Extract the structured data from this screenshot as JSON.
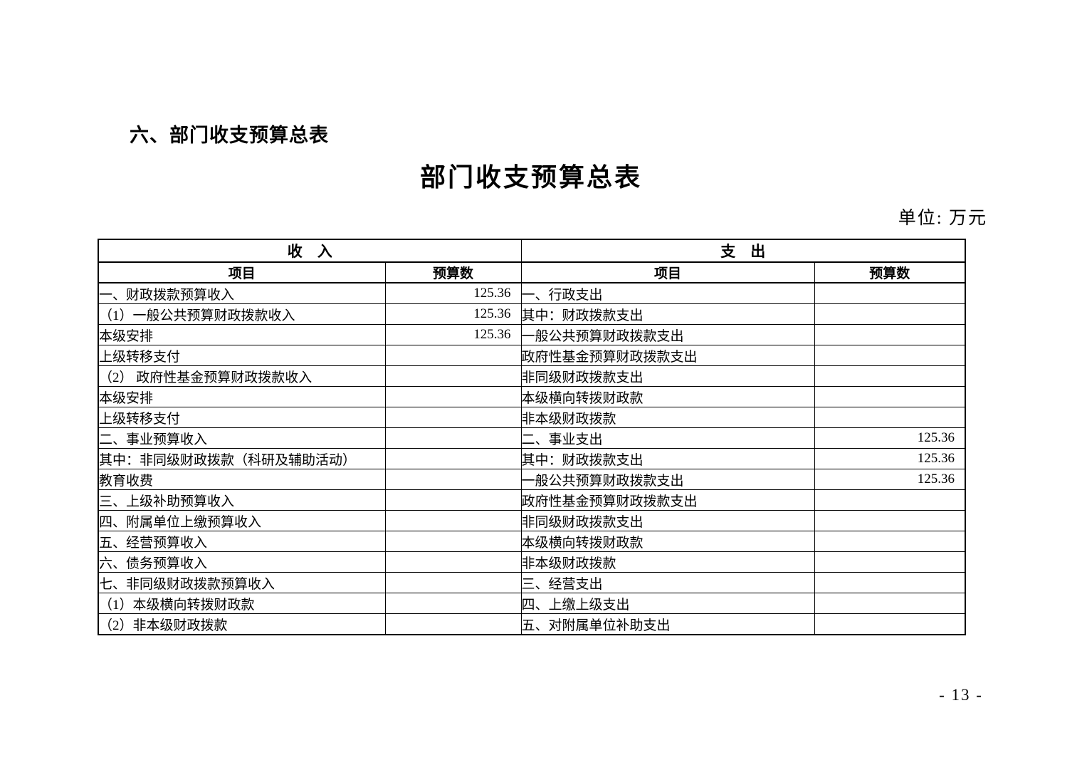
{
  "page": {
    "section_heading": "六、部门收支预算总表",
    "table_title": "部门收支预算总表",
    "unit_label": "单位: 万元",
    "page_number": "- 13 -"
  },
  "table": {
    "income": {
      "header": "收    入",
      "col_item": "项目",
      "col_budget": "预算数",
      "rows": [
        {
          "label": "一、财政拨款预算收入",
          "indent": 0,
          "value": "125.36"
        },
        {
          "label": "（1）一般公共预算财政拨款收入",
          "indent": 1,
          "value": "125.36"
        },
        {
          "label": "本级安排",
          "indent": 4,
          "value": "125.36"
        },
        {
          "label": "上级转移支付",
          "indent": 4,
          "value": ""
        },
        {
          "label": "（2） 政府性基金预算财政拨款收入",
          "indent": 1,
          "value": ""
        },
        {
          "label": "本级安排",
          "indent": 4,
          "value": ""
        },
        {
          "label": "上级转移支付",
          "indent": 4,
          "value": ""
        },
        {
          "label": "二、事业预算收入",
          "indent": 0,
          "value": ""
        },
        {
          "label": "其中：非同级财政拨款（科研及辅助活动）",
          "indent": 1,
          "value": ""
        },
        {
          "label": "教育收费",
          "indent": 2,
          "value": ""
        },
        {
          "label": "三、上级补助预算收入",
          "indent": 0,
          "value": ""
        },
        {
          "label": "四、附属单位上缴预算收入",
          "indent": 0,
          "value": ""
        },
        {
          "label": "五、经营预算收入",
          "indent": 0,
          "value": ""
        },
        {
          "label": "六、债务预算收入",
          "indent": 0,
          "value": ""
        },
        {
          "label": "七、非同级财政拨款预算收入",
          "indent": 0,
          "value": ""
        },
        {
          "label": "（1）本级横向转拨财政款",
          "indent": 1,
          "value": ""
        },
        {
          "label": "（2）非本级财政拨款",
          "indent": 1,
          "value": ""
        }
      ]
    },
    "expense": {
      "header": "支    出",
      "col_item": "项目",
      "col_budget": "预算数",
      "rows": [
        {
          "label": "一、行政支出",
          "indent": 0,
          "value": ""
        },
        {
          "label": "其中：财政拨款支出",
          "indent": 1,
          "value": ""
        },
        {
          "label": "一般公共预算财政拨款支出",
          "indent": 3,
          "value": ""
        },
        {
          "label": "政府性基金预算财政拨款支出",
          "indent": 3,
          "value": ""
        },
        {
          "label": "非同级财政拨款支出",
          "indent": 2,
          "value": ""
        },
        {
          "label": "本级横向转拨财政款",
          "indent": 3,
          "value": ""
        },
        {
          "label": "非本级财政拨款",
          "indent": 3,
          "value": ""
        },
        {
          "label": "二、事业支出",
          "indent": 0,
          "value": "125.36"
        },
        {
          "label": "其中：财政拨款支出",
          "indent": 1,
          "value": "125.36"
        },
        {
          "label": "一般公共预算财政拨款支出",
          "indent": 3,
          "value": "125.36"
        },
        {
          "label": "政府性基金预算财政拨款支出",
          "indent": 3,
          "value": ""
        },
        {
          "label": "非同级财政拨款支出",
          "indent": 2,
          "value": ""
        },
        {
          "label": "本级横向转拨财政款",
          "indent": 3,
          "value": ""
        },
        {
          "label": "非本级财政拨款",
          "indent": 3,
          "value": ""
        },
        {
          "label": "三、经营支出",
          "indent": 0,
          "value": ""
        },
        {
          "label": "四、上缴上级支出",
          "indent": 0,
          "value": ""
        },
        {
          "label": "五、对附属单位补助支出",
          "indent": 0,
          "value": ""
        }
      ]
    }
  }
}
